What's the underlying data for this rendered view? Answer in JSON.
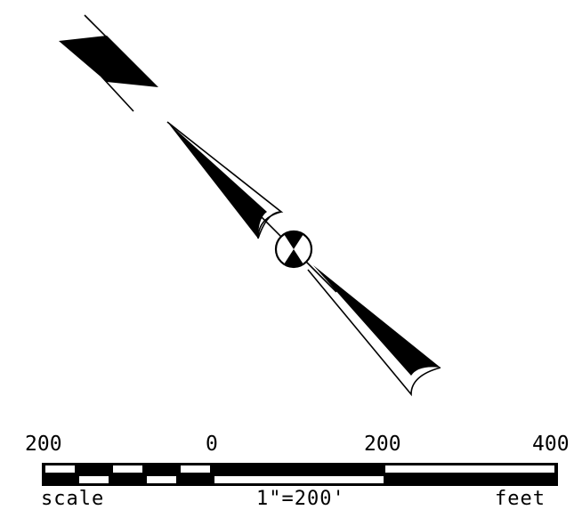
{
  "scale_bar": {
    "ticks": [
      "200",
      "0",
      "200",
      "400"
    ],
    "left_label": "scale",
    "center_label": "1\"=200'",
    "right_label": "feet"
  },
  "colors": {
    "ink": "#000000",
    "paper": "#ffffff"
  }
}
